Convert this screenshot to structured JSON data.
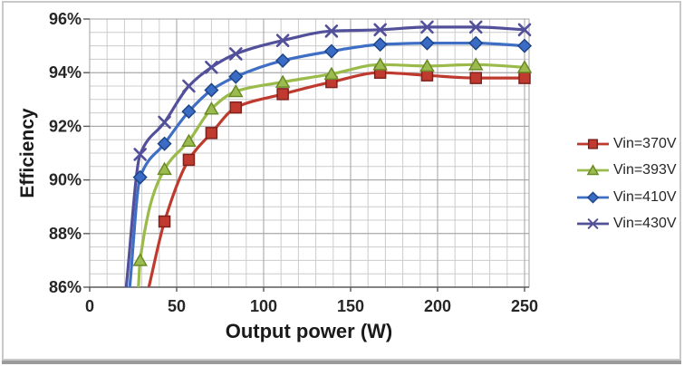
{
  "figure": {
    "border_color": "#c9c9c9",
    "shadow_color": "#9b9b9b",
    "background": "#ffffff"
  },
  "chart_data": {
    "type": "line",
    "title": "",
    "xlabel": "Output power (W)",
    "ylabel": "Efficiency",
    "xlim": [
      0,
      252.6
    ],
    "ylim": [
      86,
      96
    ],
    "x_minor_step": 10,
    "y_minor_step": 0.5,
    "grid": "major+minor",
    "legend_position": "right",
    "colors": {
      "minor_grid": "#cccccc",
      "major_grid": "#a2a2a2",
      "axis_line": "#5a5a5a",
      "tick_text": "#262626"
    },
    "x_ticks": [
      {
        "value": 0,
        "label": "0"
      },
      {
        "value": 50,
        "label": "50"
      },
      {
        "value": 100,
        "label": "100"
      },
      {
        "value": 150,
        "label": "150"
      },
      {
        "value": 200,
        "label": "200"
      },
      {
        "value": 250,
        "label": "250"
      }
    ],
    "y_ticks": [
      {
        "value": 86,
        "label": "86%"
      },
      {
        "value": 88,
        "label": "88%"
      },
      {
        "value": 90,
        "label": "90%"
      },
      {
        "value": 92,
        "label": "92%"
      },
      {
        "value": 94,
        "label": "94%"
      },
      {
        "value": 96,
        "label": "96%"
      }
    ],
    "series": [
      {
        "name": "Vin=370V",
        "marker": "square",
        "color": "#bf3a2e",
        "marker_fill": "#c03a30",
        "marker_stroke": "#7f221c",
        "points": [
          [
            34,
            86.0
          ],
          [
            43,
            88.45
          ],
          [
            57,
            90.75
          ],
          [
            70,
            91.75
          ],
          [
            84,
            92.7
          ],
          [
            111,
            93.2
          ],
          [
            139,
            93.65
          ],
          [
            167,
            94.0
          ],
          [
            194,
            93.9
          ],
          [
            222,
            93.8
          ],
          [
            250,
            93.8
          ]
        ]
      },
      {
        "name": "Vin=393V",
        "marker": "triangle",
        "color": "#9aba4a",
        "marker_fill": "#9cbb4e",
        "marker_stroke": "#6b8a28",
        "points": [
          [
            28,
            86.0
          ],
          [
            29,
            87.0
          ],
          [
            43,
            90.4
          ],
          [
            57,
            91.45
          ],
          [
            70,
            92.65
          ],
          [
            84,
            93.3
          ],
          [
            111,
            93.65
          ],
          [
            139,
            93.95
          ],
          [
            167,
            94.3
          ],
          [
            194,
            94.25
          ],
          [
            222,
            94.3
          ],
          [
            250,
            94.2
          ]
        ]
      },
      {
        "name": "Vin=410V",
        "marker": "diamond",
        "color": "#3e6fc4",
        "marker_fill": "#3a6cc6",
        "marker_stroke": "#1f4586",
        "points": [
          [
            23,
            86.0
          ],
          [
            29,
            90.1
          ],
          [
            43,
            91.35
          ],
          [
            57,
            92.55
          ],
          [
            70,
            93.35
          ],
          [
            84,
            93.85
          ],
          [
            111,
            94.45
          ],
          [
            139,
            94.8
          ],
          [
            167,
            95.05
          ],
          [
            194,
            95.1
          ],
          [
            222,
            95.1
          ],
          [
            250,
            95.0
          ]
        ]
      },
      {
        "name": "Vin=430V",
        "marker": "x",
        "color": "#52509a",
        "marker_fill": "none",
        "marker_stroke": "#52509a",
        "points": [
          [
            21,
            86.0
          ],
          [
            29,
            90.95
          ],
          [
            43,
            92.15
          ],
          [
            57,
            93.5
          ],
          [
            70,
            94.2
          ],
          [
            84,
            94.7
          ],
          [
            111,
            95.2
          ],
          [
            139,
            95.55
          ],
          [
            167,
            95.6
          ],
          [
            194,
            95.7
          ],
          [
            222,
            95.7
          ],
          [
            250,
            95.6
          ]
        ]
      }
    ]
  }
}
